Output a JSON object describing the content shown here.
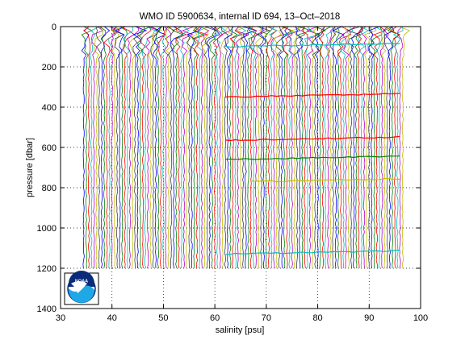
{
  "chart_data": {
    "type": "line",
    "title": "WMO ID 5900634, internal ID 694, 13–Oct–2018",
    "xlabel": "salinity [psu]",
    "ylabel": "pressure [dbar]",
    "xlim": [
      30,
      100
    ],
    "ylim": [
      0,
      1400
    ],
    "y_reversed": true,
    "grid": true,
    "grid_style": "dotted",
    "x_ticks": [
      30,
      40,
      50,
      60,
      70,
      80,
      90,
      100
    ],
    "y_ticks": [
      0,
      200,
      400,
      600,
      800,
      1000,
      1200,
      1400
    ],
    "profile_pressure_range": [
      0,
      1200
    ],
    "profile_offset_range": [
      34.5,
      96.5
    ],
    "profile_offset_step": 0.5,
    "series_colors": [
      "#0000ff",
      "#008000",
      "#ff0000",
      "#00bfbf",
      "#bf00bf",
      "#bfbf00",
      "#404040"
    ],
    "spike_features": [
      {
        "color": "#00bfbf",
        "pressure": 100,
        "x_start": 62,
        "x_end": 96
      },
      {
        "color": "#ff0000",
        "pressure": 350,
        "x_start": 62,
        "x_end": 96
      },
      {
        "color": "#ff0000",
        "pressure": 565,
        "x_start": 62,
        "x_end": 96
      },
      {
        "color": "#008000",
        "pressure": 660,
        "x_start": 62,
        "x_end": 96
      },
      {
        "color": "#bfbf00",
        "pressure": 770,
        "x_start": 67,
        "x_end": 96
      },
      {
        "color": "#00bfbf",
        "pressure": 1130,
        "x_start": 62,
        "x_end": 96
      }
    ],
    "logo": {
      "label": "NOAA",
      "primary_color": "#0a2a7a",
      "secondary_color": "#1fa8e6"
    }
  }
}
